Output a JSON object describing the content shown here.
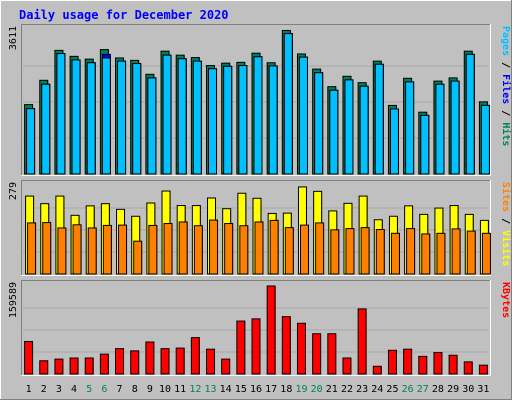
{
  "chart_data": {
    "type": "bar",
    "title": "Daily usage for December 2020",
    "colors": {
      "background": "#c0c0c0",
      "title": "#0000ff",
      "hits": "#00805c",
      "files": "#0000ff",
      "pages": "#00c0ff",
      "visits": "#ffff00",
      "sites": "#ff8000",
      "kbytes": "#ff0000",
      "weekday_label": "#000000",
      "weekend_label": "#00805c"
    },
    "days": [
      "1",
      "2",
      "3",
      "4",
      "5",
      "6",
      "7",
      "8",
      "9",
      "10",
      "11",
      "12",
      "13",
      "14",
      "15",
      "16",
      "17",
      "18",
      "19",
      "20",
      "21",
      "22",
      "23",
      "24",
      "25",
      "26",
      "27",
      "28",
      "29",
      "30",
      "31"
    ],
    "weekend_days": [
      "5",
      "6",
      "12",
      "13",
      "19",
      "20",
      "26",
      "27"
    ],
    "panels": [
      {
        "max_label": "3611",
        "ymax": 3611,
        "legend": [
          {
            "text": "Pages",
            "color": "#00c0ff"
          },
          {
            "text": " / ",
            "color": "#000000"
          },
          {
            "text": "Files",
            "color": "#0000ff"
          },
          {
            "text": " / ",
            "color": "#000000"
          },
          {
            "text": "Hits",
            "color": "#00805c"
          }
        ],
        "series": [
          {
            "name": "Hits",
            "color": "#00805c",
            "values": [
              1740,
              2350,
              3100,
              2950,
              2880,
              3120,
              2910,
              2850,
              2500,
              3080,
              2980,
              2920,
              2720,
              2780,
              2800,
              3030,
              2790,
              3600,
              3010,
              2630,
              2190,
              2450,
              2290,
              2830,
              1720,
              2400,
              1550,
              2330,
              2410,
              3080,
              1810
            ]
          },
          {
            "name": "Files",
            "color": "#0000ff",
            "values": [
              1640,
              2250,
              3020,
              2860,
              2790,
              3000,
              2830,
              2770,
              2410,
              2980,
              2890,
              2830,
              2640,
              2700,
              2720,
              2940,
              2710,
              3520,
              2930,
              2540,
              2100,
              2360,
              2200,
              2750,
              1630,
              2310,
              1470,
              2250,
              2330,
              3000,
              1720
            ]
          },
          {
            "name": "Pages",
            "color": "#00c0ff",
            "values": [
              1640,
              2250,
              3020,
              2860,
              2790,
              2910,
              2830,
              2770,
              2410,
              2980,
              2890,
              2830,
              2640,
              2700,
              2720,
              2940,
              2710,
              3520,
              2930,
              2540,
              2100,
              2360,
              2200,
              2750,
              1630,
              2310,
              1470,
              2250,
              2330,
              3000,
              1720
            ]
          }
        ]
      },
      {
        "max_label": "279",
        "ymax": 279,
        "legend": [
          {
            "text": "Sites",
            "color": "#ff8000"
          },
          {
            "text": " / ",
            "color": "#000000"
          },
          {
            "text": "Visits",
            "color": "#ffff00"
          }
        ],
        "series": [
          {
            "name": "Visits",
            "color": "#ffff00",
            "values": [
              247,
              223,
              247,
              186,
              216,
              223,
              205,
              183,
              225,
              263,
              217,
              217,
              241,
              207,
              256,
              240,
              192,
              193,
              276,
              262,
              200,
              224,
              247,
              172,
              183,
              216,
              189,
              209,
              217,
              189,
              170
            ]
          },
          {
            "name": "Sites",
            "color": "#ff8000",
            "values": [
              162,
              163,
              146,
              156,
              146,
              154,
              155,
              104,
              154,
              160,
              165,
              153,
              171,
              160,
              153,
              165,
              170,
              147,
              155,
              162,
              140,
              144,
              147,
              141,
              129,
              144,
              127,
              129,
              143,
              136,
              129
            ]
          }
        ]
      },
      {
        "max_label": "159589",
        "ymax": 159589,
        "legend": [
          {
            "text": "KBytes",
            "color": "#ff0000"
          }
        ],
        "series": [
          {
            "name": "KBytes",
            "color": "#ff0000",
            "values": [
              59000,
              24000,
              27000,
              29000,
              29000,
              36000,
              46000,
              42000,
              58000,
              46000,
              47000,
              66000,
              45000,
              27000,
              96000,
              100000,
              159589,
              104000,
              92000,
              73000,
              73000,
              29000,
              118000,
              14000,
              43000,
              45000,
              32000,
              39000,
              34000,
              22000,
              16000
            ]
          }
        ]
      }
    ]
  }
}
